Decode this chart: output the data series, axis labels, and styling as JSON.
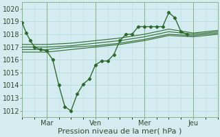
{
  "xlabel": "Pression niveau de la mer( hPa )",
  "background_color": "#d4ecf0",
  "grid_color": "#b8dde5",
  "line_color": "#2d6a2d",
  "xlim": [
    0,
    96
  ],
  "ylim": [
    1011.5,
    1020.5
  ],
  "yticks": [
    1012,
    1013,
    1014,
    1015,
    1016,
    1017,
    1018,
    1019,
    1020
  ],
  "xtick_positions": [
    12,
    36,
    60,
    84
  ],
  "xtick_labels": [
    "Mar",
    "Ven",
    "Mer",
    "Jeu"
  ],
  "series_main": {
    "x": [
      0,
      2,
      4,
      6,
      9,
      12,
      15,
      18,
      21,
      24,
      27,
      30,
      33,
      36,
      39,
      42,
      45,
      48,
      51,
      54,
      57,
      60,
      63,
      66,
      69,
      72,
      75,
      78,
      81
    ],
    "y": [
      1018.9,
      1018.1,
      1017.5,
      1017.0,
      1016.8,
      1016.7,
      1016.0,
      1014.0,
      1012.3,
      1012.0,
      1013.3,
      1014.1,
      1014.5,
      1015.6,
      1015.9,
      1015.9,
      1016.4,
      1017.5,
      1018.0,
      1018.0,
      1018.6,
      1018.6,
      1018.6,
      1018.6,
      1018.6,
      1019.7,
      1019.3,
      1018.2,
      1018.0
    ]
  },
  "series_b1": {
    "x": [
      0,
      12,
      24,
      36,
      48,
      60,
      72,
      84,
      96
    ],
    "y": [
      1017.0,
      1017.0,
      1017.1,
      1017.3,
      1017.5,
      1017.8,
      1018.2,
      1018.0,
      1018.2
    ]
  },
  "series_b2": {
    "x": [
      0,
      12,
      24,
      36,
      48,
      60,
      72,
      84,
      96
    ],
    "y": [
      1017.2,
      1017.2,
      1017.3,
      1017.5,
      1017.7,
      1018.0,
      1018.4,
      1018.1,
      1018.3
    ]
  },
  "series_b3": {
    "x": [
      0,
      12,
      24,
      36,
      48,
      60,
      72,
      84,
      96
    ],
    "y": [
      1016.8,
      1016.8,
      1017.0,
      1017.1,
      1017.3,
      1017.6,
      1018.0,
      1017.9,
      1018.1
    ]
  },
  "series_b4": {
    "x": [
      0,
      12,
      24,
      36,
      48,
      60,
      72,
      84,
      96
    ],
    "y": [
      1016.6,
      1016.6,
      1016.8,
      1017.0,
      1017.2,
      1017.5,
      1017.9,
      1017.8,
      1018.0
    ]
  },
  "vlines": [
    12,
    36,
    60,
    84
  ]
}
